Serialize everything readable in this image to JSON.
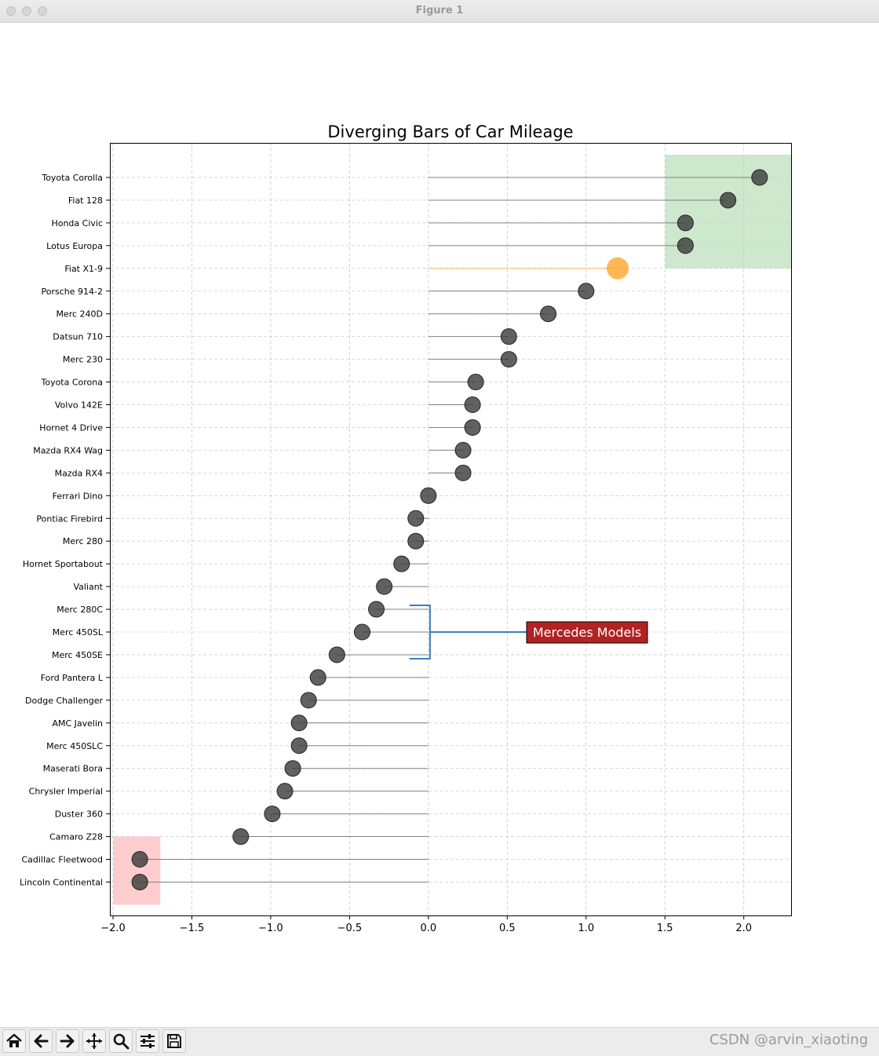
{
  "window": {
    "title": "Figure 1"
  },
  "toolbar": {
    "buttons": [
      {
        "name": "home",
        "icon": "home-icon"
      },
      {
        "name": "back",
        "icon": "back-arrow-icon"
      },
      {
        "name": "forward",
        "icon": "forward-arrow-icon"
      },
      {
        "name": "pan",
        "icon": "pan-move-icon"
      },
      {
        "name": "zoom",
        "icon": "zoom-magnifier-icon"
      },
      {
        "name": "configure",
        "icon": "sliders-icon"
      },
      {
        "name": "save",
        "icon": "floppy-save-icon"
      }
    ]
  },
  "watermark": "CSDN @arvin_xiaoting",
  "chart_data": {
    "type": "lollipop",
    "title": "Diverging Bars of Car Mileage",
    "xlabel": "",
    "ylabel": "",
    "xlim": [
      -2.0,
      2.3
    ],
    "xticks": [
      -2.0,
      -1.5,
      -1.0,
      -0.5,
      0.0,
      0.5,
      1.0,
      1.5,
      2.0
    ],
    "xtick_labels": [
      "−2.0",
      "−1.5",
      "−1.0",
      "−0.5",
      "0.0",
      "0.5",
      "1.0",
      "1.5",
      "2.0"
    ],
    "grid": true,
    "categories": [
      "Toyota Corolla",
      "Fiat 128",
      "Honda Civic",
      "Lotus Europa",
      "Fiat X1-9",
      "Porsche 914-2",
      "Merc 240D",
      "Datsun 710",
      "Merc 230",
      "Toyota Corona",
      "Volvo 142E",
      "Hornet 4 Drive",
      "Mazda RX4 Wag",
      "Mazda RX4",
      "Ferrari Dino",
      "Pontiac Firebird",
      "Merc 280",
      "Hornet Sportabout",
      "Valiant",
      "Merc 280C",
      "Merc 450SL",
      "Merc 450SE",
      "Ford Pantera L",
      "Dodge Challenger",
      "AMC Javelin",
      "Merc 450SLC",
      "Maserati Bora",
      "Chrysler Imperial",
      "Duster 360",
      "Camaro Z28",
      "Cadillac Fleetwood",
      "Lincoln Continental"
    ],
    "values": [
      2.1,
      1.9,
      1.63,
      1.63,
      1.2,
      1.0,
      0.76,
      0.51,
      0.51,
      0.3,
      0.28,
      0.28,
      0.22,
      0.22,
      0.0,
      -0.08,
      -0.08,
      -0.17,
      -0.28,
      -0.33,
      -0.42,
      -0.58,
      -0.7,
      -0.76,
      -0.82,
      -0.82,
      -0.86,
      -0.91,
      -0.99,
      -1.19,
      -1.83,
      -1.83
    ],
    "highlight": {
      "category": "Fiat X1-9",
      "color": "#ff9f1c"
    },
    "marker_color": "#3a3a3a",
    "stem_color": "#808080",
    "highlight_regions": [
      {
        "x_range": [
          1.5,
          2.3
        ],
        "rows": [
          "Toyota Corolla",
          "Lotus Europa"
        ],
        "color": "#2ca02c",
        "alpha": 0.24
      },
      {
        "x_range": [
          -2.0,
          -1.7
        ],
        "rows": [
          "Cadillac Fleetwood",
          "Lincoln Continental"
        ],
        "color": "#ff5a5a",
        "alpha": 0.3
      }
    ],
    "annotation": {
      "text": "Mercedes Models",
      "bracket_rows": [
        "Merc 280C",
        "Merc 450SE"
      ],
      "bracket_x": -0.12,
      "bg_color": "#b22222",
      "text_color": "#ffffff",
      "bracket_color": "#3a7fbd"
    }
  }
}
